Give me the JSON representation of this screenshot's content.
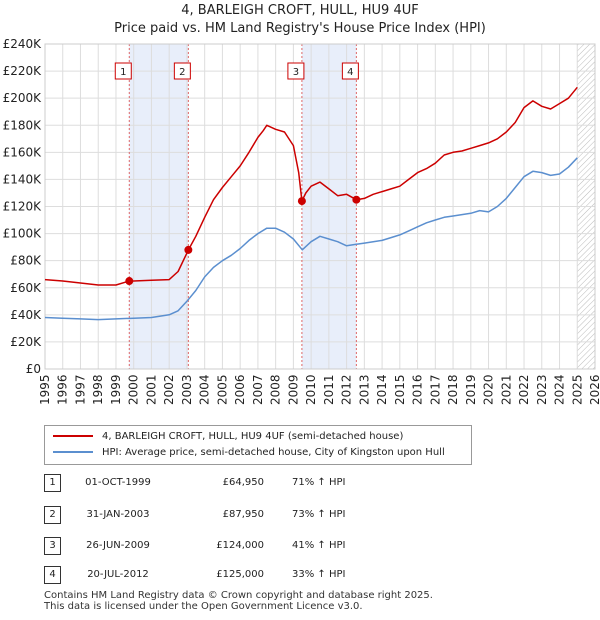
{
  "title": {
    "line1": "4, BARLEIGH CROFT, HULL, HU9 4UF",
    "line2": "Price paid vs. HM Land Registry's House Price Index (HPI)"
  },
  "chart_data": {
    "type": "line",
    "xlim": [
      1995,
      2026
    ],
    "ylim": [
      0,
      240000
    ],
    "x_ticks": [
      "1995",
      "1996",
      "1997",
      "1998",
      "1999",
      "2000",
      "2001",
      "2002",
      "2003",
      "2004",
      "2005",
      "2006",
      "2007",
      "2008",
      "2009",
      "2010",
      "2011",
      "2012",
      "2013",
      "2014",
      "2015",
      "2016",
      "2017",
      "2018",
      "2019",
      "2020",
      "2021",
      "2022",
      "2023",
      "2024",
      "2025",
      "2026"
    ],
    "y_ticks": [
      "£0",
      "£20K",
      "£40K",
      "£60K",
      "£80K",
      "£100K",
      "£120K",
      "£140K",
      "£160K",
      "£180K",
      "£200K",
      "£220K",
      "£240K"
    ],
    "y_tick_values": [
      0,
      20000,
      40000,
      60000,
      80000,
      100000,
      120000,
      140000,
      160000,
      180000,
      200000,
      220000,
      240000
    ],
    "shaded_ranges": [
      [
        1999.75,
        2003.08
      ],
      [
        2009.48,
        2012.55
      ]
    ],
    "future_hatch_start": 2025.0,
    "series": [
      {
        "name": "4, BARLEIGH CROFT, HULL, HU9 4UF (semi-detached house)",
        "color": "#cc0000",
        "x": [
          1995,
          1996,
          1997,
          1998,
          1999,
          1999.75,
          2000,
          2001,
          2002,
          2002.5,
          2003.08,
          2003.5,
          2004,
          2004.5,
          2005,
          2005.5,
          2006,
          2006.5,
          2007,
          2007.3,
          2007.5,
          2008,
          2008.5,
          2009,
          2009.3,
          2009.48,
          2009.7,
          2010,
          2010.5,
          2011,
          2011.5,
          2012,
          2012.55,
          2013,
          2013.5,
          2014,
          2014.5,
          2015,
          2015.5,
          2016,
          2016.5,
          2017,
          2017.5,
          2018,
          2018.5,
          2019,
          2019.5,
          2020,
          2020.5,
          2021,
          2021.5,
          2022,
          2022.5,
          2023,
          2023.5,
          2024,
          2024.5,
          2025
        ],
        "y": [
          66000,
          65000,
          63500,
          62000,
          62000,
          64950,
          65000,
          65500,
          66000,
          72000,
          87950,
          98000,
          112000,
          125000,
          134000,
          142000,
          150000,
          160000,
          171000,
          176000,
          180000,
          177000,
          175000,
          165000,
          145000,
          124000,
          130000,
          135000,
          138000,
          133000,
          128000,
          129000,
          125000,
          126000,
          129000,
          131000,
          133000,
          135000,
          140000,
          145000,
          148000,
          152000,
          158000,
          160000,
          161000,
          163000,
          165000,
          167000,
          170000,
          175000,
          182000,
          193000,
          198000,
          194000,
          192000,
          196000,
          200000,
          208000
        ]
      },
      {
        "name": "HPI: Average price, semi-detached house, City of Kingston upon Hull",
        "color": "#5b8fcf",
        "x": [
          1995,
          1996,
          1997,
          1998,
          1999,
          2000,
          2001,
          2002,
          2002.5,
          2003,
          2003.5,
          2004,
          2004.5,
          2005,
          2005.5,
          2006,
          2006.5,
          2007,
          2007.5,
          2008,
          2008.5,
          2009,
          2009.5,
          2010,
          2010.5,
          2011,
          2011.5,
          2012,
          2012.5,
          2013,
          2013.5,
          2014,
          2014.5,
          2015,
          2015.5,
          2016,
          2016.5,
          2017,
          2017.5,
          2018,
          2018.5,
          2019,
          2019.5,
          2020,
          2020.5,
          2021,
          2021.5,
          2022,
          2022.5,
          2023,
          2023.5,
          2024,
          2024.5,
          2025
        ],
        "y": [
          38000,
          37500,
          37000,
          36500,
          37000,
          37500,
          38000,
          40000,
          43000,
          50000,
          58000,
          68000,
          75000,
          80000,
          84000,
          89000,
          95000,
          100000,
          104000,
          104000,
          101000,
          96000,
          88000,
          94000,
          98000,
          96000,
          94000,
          91000,
          92000,
          93000,
          94000,
          95000,
          97000,
          99000,
          102000,
          105000,
          108000,
          110000,
          112000,
          113000,
          114000,
          115000,
          117000,
          116000,
          120000,
          126000,
          134000,
          142000,
          146000,
          145000,
          143000,
          144000,
          149000,
          156000
        ]
      }
    ],
    "sale_points": [
      {
        "label": "1",
        "x": 1999.75,
        "y": 64950
      },
      {
        "label": "2",
        "x": 2003.08,
        "y": 87950
      },
      {
        "label": "3",
        "x": 2009.48,
        "y": 124000
      },
      {
        "label": "4",
        "x": 2012.55,
        "y": 125000
      }
    ]
  },
  "legend": {
    "property_label": "4, BARLEIGH CROFT, HULL, HU9 4UF (semi-detached house)",
    "hpi_label": "HPI: Average price, semi-detached house, City of Kingston upon Hull",
    "property_color": "#cc0000",
    "hpi_color": "#5b8fcf"
  },
  "transactions": [
    {
      "num": "1",
      "date": "01-OCT-1999",
      "price": "£64,950",
      "hpi": "71% ↑ HPI"
    },
    {
      "num": "2",
      "date": "31-JAN-2003",
      "price": "£87,950",
      "hpi": "73% ↑ HPI"
    },
    {
      "num": "3",
      "date": "26-JUN-2009",
      "price": "£124,000",
      "hpi": "41% ↑ HPI"
    },
    {
      "num": "4",
      "date": "20-JUL-2012",
      "price": "£125,000",
      "hpi": "33% ↑ HPI"
    }
  ],
  "footer": {
    "line1": "Contains HM Land Registry data © Crown copyright and database right 2025.",
    "line2": "This data is licensed under the Open Government Licence v3.0."
  }
}
